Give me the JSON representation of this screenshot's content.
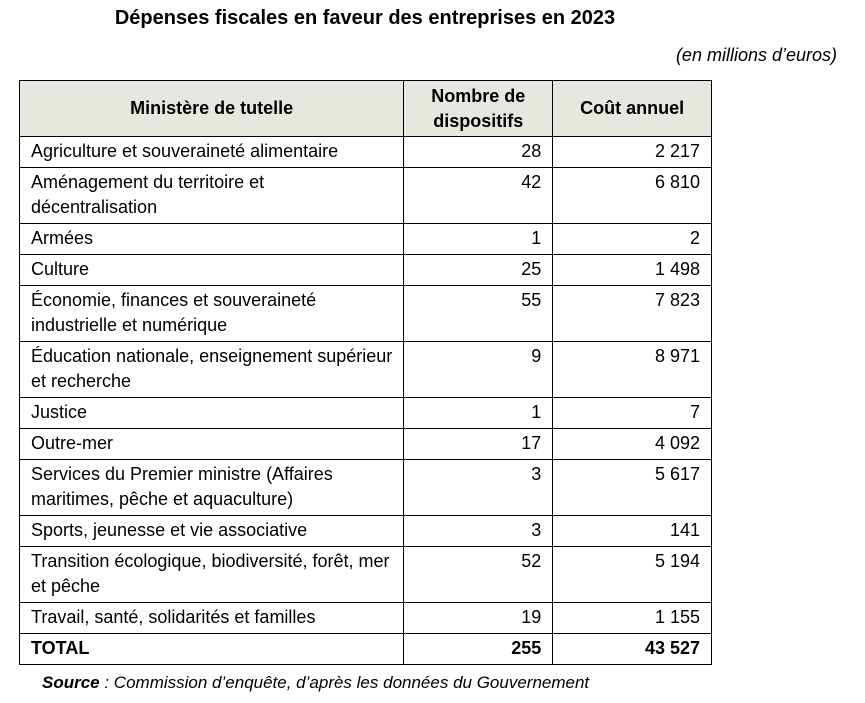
{
  "title": "Dépenses fiscales en faveur des entreprises en 2023",
  "unit": "(en millions d’euros)",
  "headers": {
    "ministry": "Ministère de tutelle",
    "count_line1": "Nombre de",
    "count_line2": "dispositifs",
    "cost": "Coût annuel"
  },
  "rows": [
    {
      "ministry": "Agriculture et souveraineté alimentaire",
      "count": "28",
      "cost": "2 217"
    },
    {
      "ministry": "Aménagement du territoire et décentralisation",
      "count": "42",
      "cost": "6 810"
    },
    {
      "ministry": "Armées",
      "count": "1",
      "cost": "2"
    },
    {
      "ministry": "Culture",
      "count": "25",
      "cost": "1 498"
    },
    {
      "ministry": "Économie, finances et souveraineté industrielle et numérique",
      "count": "55",
      "cost": "7 823"
    },
    {
      "ministry": "Éducation nationale, enseignement supérieur et recherche",
      "count": "9",
      "cost": "8 971"
    },
    {
      "ministry": "Justice",
      "count": "1",
      "cost": "7"
    },
    {
      "ministry": "Outre-mer",
      "count": "17",
      "cost": "4 092"
    },
    {
      "ministry": "Services du Premier ministre (Affaires maritimes, pêche et aquaculture)",
      "count": "3",
      "cost": "5 617"
    },
    {
      "ministry": "Sports, jeunesse et vie associative",
      "count": "3",
      "cost": "141"
    },
    {
      "ministry": "Transition écologique, biodiversité, forêt, mer et pêche",
      "count": "52",
      "cost": "5 194"
    },
    {
      "ministry": "Travail, santé, solidarités et familles",
      "count": "19",
      "cost": "1 155"
    }
  ],
  "total": {
    "label": "TOTAL",
    "count": "255",
    "cost": "43 527"
  },
  "source": {
    "label": "Source",
    "text": " : Commission d’enquête, d’après les données du Gouvernement"
  }
}
